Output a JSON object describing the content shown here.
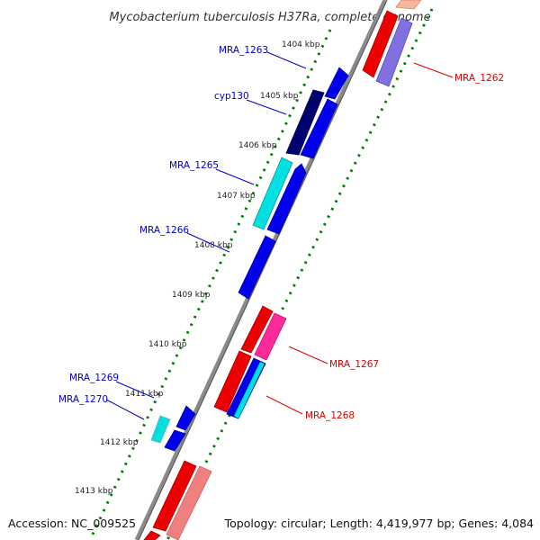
{
  "title": "Mycobacterium tuberculosis H37Ra, complete genome",
  "footer": {
    "accession": "Accession: NC_009525",
    "summary": "Topology: circular; Length: 4,419,977 bp; Genes: 4,084"
  },
  "scale_labels": [
    "1404 kbp",
    "1405 kbp",
    "1406 kbp",
    "1407 kbp",
    "1408 kbp",
    "1409 kbp",
    "1410 kbp",
    "1411 kbp",
    "1412 kbp",
    "1413 kbp"
  ],
  "forward_genes": [
    "MRA_1263",
    "cyp130",
    "MRA_1265",
    "MRA_1266",
    "MRA_1269",
    "MRA_1270"
  ],
  "reverse_genes": [
    "MRA_1262",
    "MRA_1267",
    "MRA_1268"
  ],
  "colors": {
    "forward_label": "#0000cc",
    "reverse_label": "#dd0000",
    "backbone": "#8a8a8a",
    "tick": "#008000",
    "blue": "#0000ee",
    "navy": "#00006e",
    "cyan": "#00e0e0",
    "red": "#ee0000",
    "pink": "#ff2a9a",
    "salmon": "#f08080",
    "lavender": "#8070e0"
  }
}
